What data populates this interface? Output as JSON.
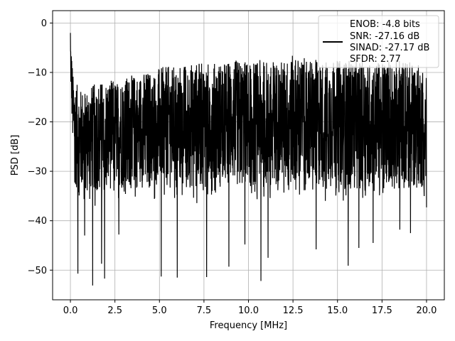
{
  "chart_data": {
    "type": "line",
    "title": "",
    "xlabel": "Frequency [MHz]",
    "ylabel": "PSD [dB]",
    "xlim": [
      -1.0,
      21.0
    ],
    "ylim": [
      -56.0,
      2.5
    ],
    "x_ticks": [
      0.0,
      2.5,
      5.0,
      7.5,
      10.0,
      12.5,
      15.0,
      17.5,
      20.0
    ],
    "x_tick_labels": [
      "0.0",
      "2.5",
      "5.0",
      "7.5",
      "10.0",
      "12.5",
      "15.0",
      "17.5",
      "20.0"
    ],
    "y_ticks": [
      0,
      -10,
      -20,
      -30,
      -40,
      -50
    ],
    "y_tick_labels": [
      "0",
      "−10",
      "−20",
      "−30",
      "−40",
      "−50"
    ],
    "grid": true,
    "legend_position": "top-right",
    "series_color": "#000000",
    "series": [
      {
        "name": "",
        "upper_envelope": {
          "x": [
            0.0,
            0.15,
            0.5,
            1.0,
            1.5,
            2.0,
            2.5,
            3.0,
            4.0,
            5.0,
            6.0,
            7.0,
            8.0,
            9.0,
            10.0,
            11.0,
            12.0,
            12.5,
            13.0,
            14.0,
            15.0,
            16.0,
            17.0,
            18.0,
            19.0,
            20.0
          ],
          "y": [
            -2.0,
            -10.5,
            -13.5,
            -13.0,
            -12.0,
            -11.5,
            -11.5,
            -11.0,
            -10.0,
            -9.0,
            -8.5,
            -8.0,
            -8.0,
            -7.5,
            -7.5,
            -7.5,
            -7.5,
            -6.5,
            -7.0,
            -7.5,
            -7.5,
            -7.5,
            -8.0,
            -7.0,
            -7.5,
            -9.0
          ]
        },
        "lower_envelope": {
          "x": [
            0.0,
            0.2,
            0.5,
            1.0,
            1.5,
            2.0,
            2.5,
            3.0,
            4.0,
            5.0,
            6.0,
            7.0,
            8.0,
            9.0,
            10.0,
            11.0,
            12.0,
            13.0,
            14.0,
            15.0,
            16.0,
            17.0,
            18.0,
            19.0,
            20.0
          ],
          "y": [
            -12.0,
            -33.0,
            -35.0,
            -35.0,
            -34.5,
            -34.0,
            -34.0,
            -34.0,
            -33.5,
            -33.5,
            -34.0,
            -34.0,
            -34.0,
            -34.0,
            -34.0,
            -34.0,
            -34.0,
            -34.0,
            -34.0,
            -34.0,
            -34.0,
            -34.0,
            -34.0,
            -34.0,
            -34.0
          ]
        },
        "deep_spikes": [
          {
            "x": 0.42,
            "y": -50.7
          },
          {
            "x": 0.8,
            "y": -43.0
          },
          {
            "x": 1.25,
            "y": -53.1
          },
          {
            "x": 1.75,
            "y": -48.7
          },
          {
            "x": 1.92,
            "y": -51.7
          },
          {
            "x": 2.72,
            "y": -42.8
          },
          {
            "x": 5.1,
            "y": -51.3
          },
          {
            "x": 6.0,
            "y": -51.5
          },
          {
            "x": 7.65,
            "y": -51.4
          },
          {
            "x": 8.9,
            "y": -49.3
          },
          {
            "x": 9.8,
            "y": -44.8
          },
          {
            "x": 11.1,
            "y": -47.5
          },
          {
            "x": 10.7,
            "y": -52.2
          },
          {
            "x": 13.8,
            "y": -45.8
          },
          {
            "x": 15.6,
            "y": -49.1
          },
          {
            "x": 16.2,
            "y": -45.5
          },
          {
            "x": 17.0,
            "y": -44.5
          },
          {
            "x": 19.1,
            "y": -42.5
          },
          {
            "x": 18.5,
            "y": -41.8
          },
          {
            "x": 20.0,
            "y": -37.3
          }
        ]
      }
    ],
    "legend_entries": [
      "ENOB: -4.8 bits",
      "SNR: -27.16 dB",
      "SINAD: -27.17 dB",
      "SFDR: 2.77"
    ]
  }
}
